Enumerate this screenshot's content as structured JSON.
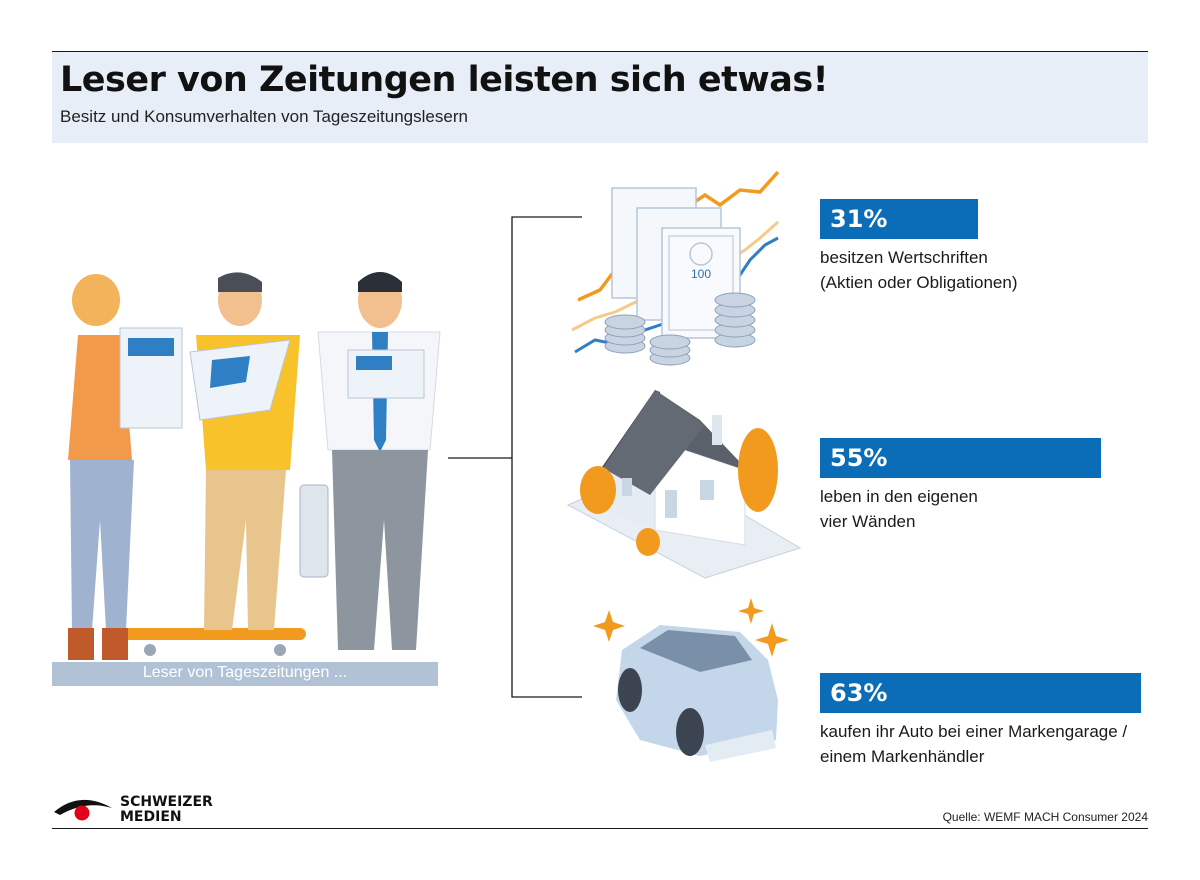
{
  "header": {
    "title": "Leser von Zeitungen leisten sich etwas!",
    "subtitle": "Besitz und Konsumverhalten von Tageszeitungslesern"
  },
  "chart_data": {
    "type": "bar",
    "title": "Leser von Zeitungen leisten sich etwas!",
    "subtitle": "Besitz und Konsumverhalten von Tageszeitungslesern",
    "unit": "%",
    "categories": [
      "besitzen Wertschriften (Aktien oder Obligationen)",
      "leben in den eigenen vier Wänden",
      "kaufen ihr Auto bei einer Markengarage / einem Markenhändler"
    ],
    "values": [
      31,
      55,
      63
    ],
    "xlim": [
      0,
      100
    ],
    "grid": false
  },
  "stats": [
    {
      "value_label": "31%",
      "line1": "besitzen Wertschriften",
      "line2": "(Aktien oder Obligationen)",
      "icon": "securities-icon"
    },
    {
      "value_label": "55%",
      "line1": "leben in den eigenen",
      "line2": "vier Wänden",
      "icon": "house-icon"
    },
    {
      "value_label": "63%",
      "line1": "kaufen ihr Auto bei einer Markengarage /",
      "line2": "einem Markenhändler",
      "icon": "car-icon"
    }
  ],
  "readers": {
    "label": "Leser von Tageszeitungen ..."
  },
  "logo": {
    "line1": "SCHWEIZER",
    "line2": "MEDIEN"
  },
  "source": "Quelle: WEMF MACH Consumer 2024",
  "colors": {
    "bar": "#0b6cb7",
    "header_band": "#e8eef8",
    "readers_band": "#b1c2d6",
    "accent_orange": "#f29a1e",
    "logo_red": "#e2001a"
  }
}
